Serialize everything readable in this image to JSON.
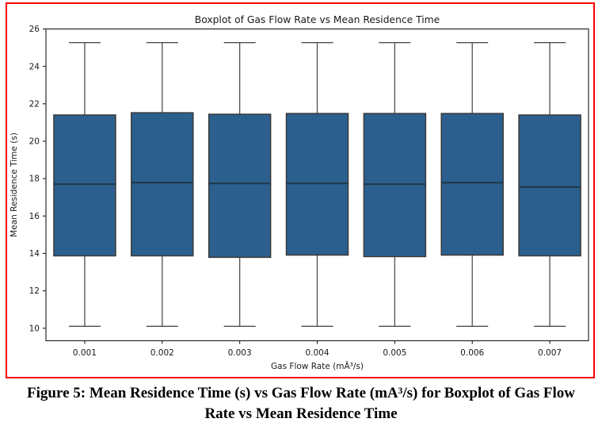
{
  "chart_data": {
    "type": "boxplot",
    "title": "Boxplot of Gas Flow Rate vs Mean Residence Time",
    "xlabel": "Gas Flow Rate (mÂ³/s)",
    "ylabel": "Mean Residence Time (s)",
    "categories": [
      "0.001",
      "0.002",
      "0.003",
      "0.004",
      "0.005",
      "0.006",
      "0.007"
    ],
    "yticks": [
      10,
      12,
      14,
      16,
      18,
      20,
      22,
      24,
      26
    ],
    "ylim": [
      9.33,
      26.0
    ],
    "legend": "none",
    "grid": false,
    "boxes": [
      {
        "category": "0.001",
        "whisker_low": 10.1,
        "q1": 13.87,
        "median": 17.7,
        "q3": 21.4,
        "whisker_high": 25.27
      },
      {
        "category": "0.002",
        "whisker_low": 10.1,
        "q1": 13.87,
        "median": 17.78,
        "q3": 21.52,
        "whisker_high": 25.27
      },
      {
        "category": "0.003",
        "whisker_low": 10.1,
        "q1": 13.79,
        "median": 17.74,
        "q3": 21.44,
        "whisker_high": 25.27
      },
      {
        "category": "0.004",
        "whisker_low": 10.1,
        "q1": 13.91,
        "median": 17.74,
        "q3": 21.48,
        "whisker_high": 25.27
      },
      {
        "category": "0.005",
        "whisker_low": 10.1,
        "q1": 13.83,
        "median": 17.7,
        "q3": 21.48,
        "whisker_high": 25.27
      },
      {
        "category": "0.006",
        "whisker_low": 10.1,
        "q1": 13.91,
        "median": 17.78,
        "q3": 21.48,
        "whisker_high": 25.27
      },
      {
        "category": "0.007",
        "whisker_low": 10.1,
        "q1": 13.87,
        "median": 17.55,
        "q3": 21.4,
        "whisker_high": 25.27
      }
    ],
    "colors": {
      "box_fill": "#2b608e",
      "box_edge": "#3a3a3a",
      "whisker": "#4f4f4f",
      "cap": "#4f4f4f",
      "median": "#203648",
      "spine": "#1a1a1a",
      "frame_border": "#ff0000"
    }
  },
  "caption": {
    "text": "Figure 5: Mean Residence Time (s) vs Gas Flow Rate (mA³/s) for Boxplot of Gas Flow Rate vs Mean Residence Time"
  }
}
